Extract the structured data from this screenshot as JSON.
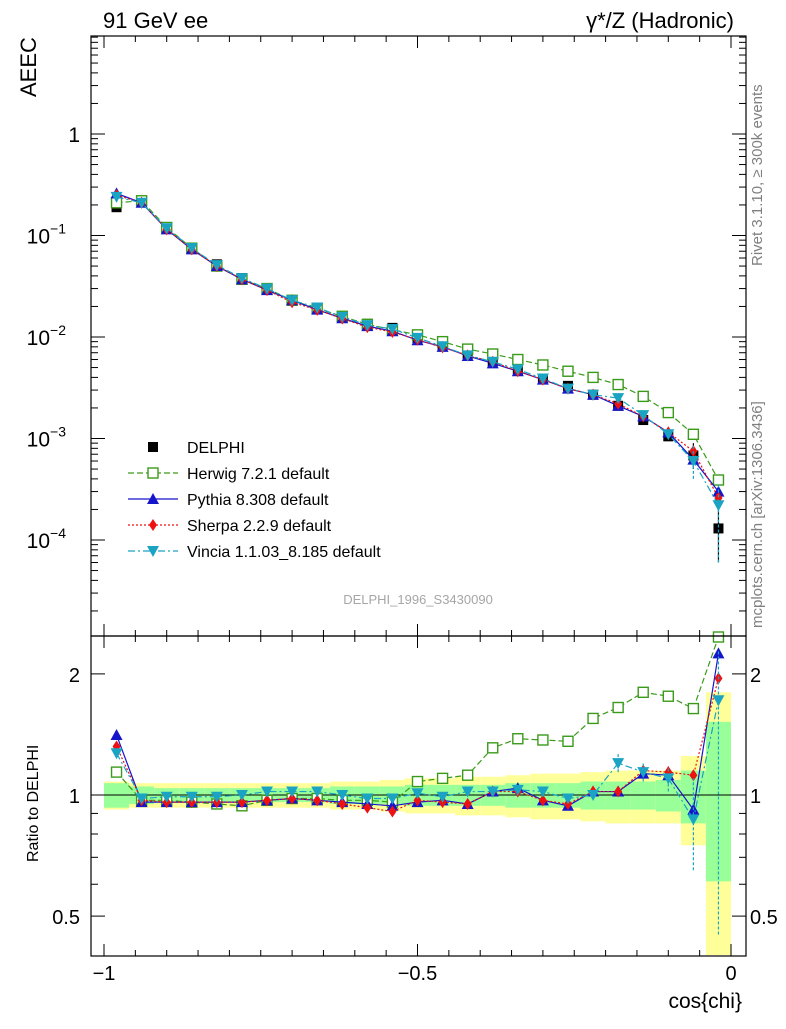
{
  "header": {
    "left": "91 GeV ee",
    "right_prefix": "γ*/Z",
    "right_suffix": " (Hadronic)"
  },
  "side_text": {
    "rivet": "Rivet 3.1.10, ≥ 300k events",
    "mcplots": "mcplots.cern.ch [arXiv:1306.3436]"
  },
  "reference": "DELPHI_1996_S3430090",
  "colors": {
    "delphi": "#000000",
    "herwig": "#3a9a1a",
    "pythia": "#1515cc",
    "sherpa": "#ee1111",
    "vincia": "#1aa3c2",
    "band_inner": "#99ff99",
    "band_outer": "#ffff99"
  },
  "chart_data": [
    {
      "type": "line",
      "title": "AEEC",
      "ylabel": "AEEC",
      "xlabel": "cos{chi}",
      "yscale": "log",
      "xlim": [
        -1.0,
        0.0
      ],
      "ylim": [
        1e-05,
        10
      ],
      "ytick_labels": [
        "1",
        "10",
        "10",
        "10",
        "10"
      ],
      "ytick_exps": [
        "",
        "−1",
        "−2",
        "−3",
        "−4"
      ],
      "x": [
        -0.98,
        -0.94,
        -0.9,
        -0.86,
        -0.82,
        -0.78,
        -0.74,
        -0.7,
        -0.66,
        -0.62,
        -0.58,
        -0.54,
        -0.5,
        -0.46,
        -0.42,
        -0.38,
        -0.34,
        -0.3,
        -0.26,
        -0.22,
        -0.18,
        -0.14,
        -0.1,
        -0.06,
        -0.02
      ],
      "series": [
        {
          "name": "DELPHI",
          "style": "data",
          "values": [
            0.19,
            0.22,
            0.12,
            0.076,
            0.052,
            0.038,
            0.03,
            0.023,
            0.019,
            0.016,
            0.0135,
            0.0123,
            0.0097,
            0.0082,
            0.0068,
            0.0056,
            0.0047,
            0.0039,
            0.0033,
            0.0027,
            0.0021,
            0.00152,
            0.00105,
            0.00068,
            0.00013
          ],
          "err_low": [
            0.19,
            0.22,
            0.12,
            0.076,
            0.052,
            0.038,
            0.03,
            0.023,
            0.019,
            0.016,
            0.0135,
            0.0123,
            0.0097,
            0.0082,
            0.0068,
            0.0056,
            0.0047,
            0.0039,
            0.0033,
            0.0027,
            0.0021,
            0.00152,
            0.00105,
            0.0005,
            6e-05
          ],
          "err_high": [
            0.19,
            0.22,
            0.12,
            0.076,
            0.052,
            0.038,
            0.03,
            0.023,
            0.019,
            0.016,
            0.0135,
            0.0123,
            0.0097,
            0.0082,
            0.0068,
            0.0056,
            0.0047,
            0.0039,
            0.0033,
            0.0027,
            0.0021,
            0.00152,
            0.00105,
            0.0009,
            0.00022
          ]
        },
        {
          "name": "Herwig 7.2.1 default",
          "style": "herwig",
          "values": [
            0.21,
            0.22,
            0.12,
            0.075,
            0.05,
            0.037,
            0.03,
            0.023,
            0.019,
            0.016,
            0.0133,
            0.0118,
            0.0105,
            0.009,
            0.0076,
            0.0068,
            0.006,
            0.0053,
            0.0046,
            0.004,
            0.0034,
            0.0026,
            0.0018,
            0.0011,
            0.00039
          ]
        },
        {
          "name": "Pythia 8.308 default",
          "style": "pythia",
          "values": [
            0.26,
            0.21,
            0.115,
            0.073,
            0.05,
            0.037,
            0.029,
            0.023,
            0.0186,
            0.0153,
            0.0128,
            0.0114,
            0.0093,
            0.008,
            0.0065,
            0.0055,
            0.0046,
            0.0038,
            0.0031,
            0.0027,
            0.0021,
            0.00165,
            0.00115,
            0.00062,
            0.0003
          ]
        },
        {
          "name": "Sherpa 2.2.9 default",
          "style": "sherpa",
          "values": [
            0.25,
            0.21,
            0.115,
            0.073,
            0.05,
            0.037,
            0.029,
            0.022,
            0.0185,
            0.0152,
            0.0125,
            0.0112,
            0.0094,
            0.0079,
            0.0066,
            0.0057,
            0.0046,
            0.0038,
            0.0031,
            0.0027,
            0.0022,
            0.00165,
            0.00115,
            0.00075,
            0.00026
          ]
        },
        {
          "name": "Vincia 1.1.03_8.185 default",
          "style": "vincia",
          "values": [
            0.24,
            0.21,
            0.118,
            0.075,
            0.051,
            0.038,
            0.03,
            0.023,
            0.0195,
            0.0158,
            0.0131,
            0.012,
            0.0098,
            0.0081,
            0.0066,
            0.0057,
            0.0048,
            0.0039,
            0.0031,
            0.0027,
            0.0025,
            0.0017,
            0.0011,
            0.0006,
            0.00022
          ],
          "err_low": [
            0.24,
            0.21,
            0.118,
            0.075,
            0.051,
            0.038,
            0.03,
            0.023,
            0.0195,
            0.0158,
            0.0131,
            0.012,
            0.0098,
            0.0081,
            0.0066,
            0.0057,
            0.0048,
            0.0039,
            0.0031,
            0.0027,
            0.0025,
            0.0017,
            0.0011,
            0.0004,
            6e-05
          ],
          "err_high": [
            0.24,
            0.21,
            0.118,
            0.075,
            0.051,
            0.038,
            0.03,
            0.023,
            0.0195,
            0.0158,
            0.0131,
            0.012,
            0.0098,
            0.0081,
            0.0066,
            0.0057,
            0.0048,
            0.0039,
            0.0031,
            0.0027,
            0.0025,
            0.0017,
            0.0011,
            0.00085,
            0.00035
          ]
        }
      ]
    },
    {
      "type": "line",
      "title": "Ratio to DELPHI",
      "ylabel": "Ratio to DELPHI",
      "xlabel": "cos{chi}",
      "yscale": "log",
      "xlim": [
        -1.0,
        0.0
      ],
      "ylim": [
        0.4,
        2.4
      ],
      "ytick_labels": [
        "0.5",
        "1",
        "2"
      ],
      "xtick_labels": [
        "−1",
        "−0.5",
        "0"
      ],
      "x": [
        -0.98,
        -0.94,
        -0.9,
        -0.86,
        -0.82,
        -0.78,
        -0.74,
        -0.7,
        -0.66,
        -0.62,
        -0.58,
        -0.54,
        -0.5,
        -0.46,
        -0.42,
        -0.38,
        -0.34,
        -0.3,
        -0.26,
        -0.22,
        -0.18,
        -0.14,
        -0.1,
        -0.06,
        -0.02
      ],
      "band_inner": [
        0.93,
        0.95,
        0.96,
        0.96,
        0.96,
        0.96,
        0.96,
        0.96,
        0.96,
        0.95,
        0.95,
        0.95,
        0.94,
        0.94,
        0.94,
        0.94,
        0.93,
        0.93,
        0.93,
        0.92,
        0.92,
        0.92,
        0.91,
        0.85,
        0.61
      ],
      "band_inner_high": [
        1.07,
        1.05,
        1.04,
        1.04,
        1.04,
        1.04,
        1.04,
        1.04,
        1.04,
        1.05,
        1.05,
        1.05,
        1.06,
        1.06,
        1.06,
        1.06,
        1.07,
        1.07,
        1.07,
        1.08,
        1.08,
        1.08,
        1.09,
        1.15,
        1.52
      ],
      "band_outer": [
        0.92,
        0.93,
        0.93,
        0.93,
        0.93,
        0.93,
        0.93,
        0.93,
        0.93,
        0.92,
        0.92,
        0.91,
        0.9,
        0.9,
        0.89,
        0.89,
        0.88,
        0.87,
        0.87,
        0.86,
        0.85,
        0.85,
        0.85,
        0.75,
        0.36
      ],
      "band_outer_high": [
        1.08,
        1.07,
        1.07,
        1.07,
        1.07,
        1.07,
        1.07,
        1.07,
        1.07,
        1.08,
        1.08,
        1.09,
        1.1,
        1.1,
        1.11,
        1.11,
        1.12,
        1.13,
        1.13,
        1.14,
        1.15,
        1.15,
        1.15,
        1.25,
        1.8
      ],
      "series": [
        {
          "name": "Herwig 7.2.1 default",
          "style": "herwig",
          "values": [
            1.14,
            0.97,
            0.97,
            0.96,
            0.95,
            0.94,
            0.97,
            0.98,
            0.98,
            0.97,
            0.97,
            0.96,
            1.08,
            1.1,
            1.12,
            1.31,
            1.38,
            1.37,
            1.36,
            1.55,
            1.65,
            1.8,
            1.76,
            1.64,
            2.65
          ]
        },
        {
          "name": "Pythia 8.308 default",
          "style": "pythia",
          "values": [
            1.41,
            0.96,
            0.96,
            0.96,
            0.96,
            0.96,
            0.97,
            0.98,
            0.97,
            0.96,
            0.95,
            0.94,
            0.96,
            0.97,
            0.95,
            1.02,
            1.04,
            0.97,
            0.94,
            1.02,
            1.02,
            1.13,
            1.12,
            0.92,
            2.25
          ]
        },
        {
          "name": "Sherpa 2.2.9 default",
          "style": "sherpa",
          "values": [
            1.32,
            0.97,
            0.96,
            0.96,
            0.96,
            0.96,
            0.97,
            0.98,
            0.97,
            0.95,
            0.93,
            0.91,
            0.97,
            0.96,
            0.95,
            1.02,
            1.02,
            0.97,
            0.95,
            1.02,
            1.02,
            1.15,
            1.14,
            1.12,
            1.95
          ]
        },
        {
          "name": "Vincia 1.1.03_8.185 default",
          "style": "vincia",
          "values": [
            1.27,
            0.98,
            0.99,
            0.99,
            0.99,
            1.0,
            1.02,
            1.02,
            1.02,
            1.0,
            0.98,
            0.98,
            1.01,
            0.99,
            1.02,
            1.02,
            1.03,
            1.02,
            0.98,
            1.0,
            1.2,
            1.14,
            1.1,
            0.87,
            1.72
          ],
          "err_low": [
            1.27,
            0.98,
            0.99,
            0.99,
            0.99,
            1.0,
            1.02,
            1.02,
            1.02,
            1.0,
            0.98,
            0.98,
            1.01,
            0.99,
            1.02,
            1.02,
            1.03,
            1.02,
            0.98,
            1.0,
            1.14,
            1.08,
            1.02,
            0.65,
            0.45
          ],
          "err_high": [
            1.27,
            0.98,
            0.99,
            0.99,
            0.99,
            1.0,
            1.02,
            1.02,
            1.02,
            1.0,
            0.98,
            0.98,
            1.01,
            0.99,
            1.02,
            1.02,
            1.03,
            1.02,
            0.98,
            1.0,
            1.27,
            1.2,
            1.18,
            1.1,
            2.3
          ]
        }
      ]
    }
  ]
}
